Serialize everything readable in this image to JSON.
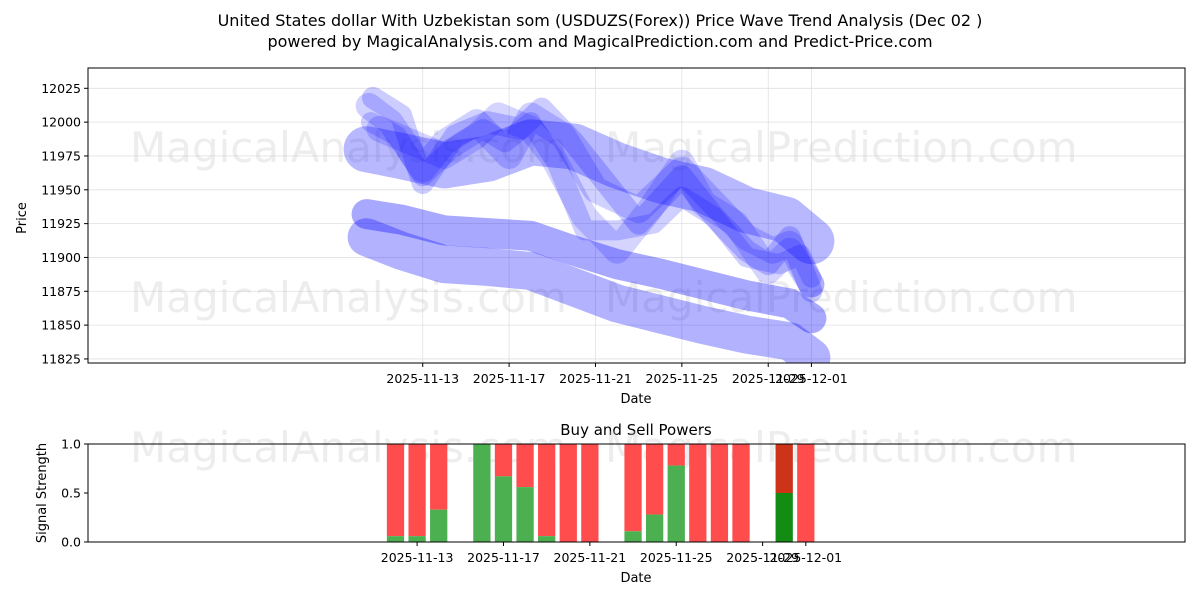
{
  "title_line1": "United States dollar With Uzbekistan som (USDUZS(Forex)) Price Wave Trend Analysis (Dec 02 )",
  "title_line2": "powered by MagicalAnalysis.com and MagicalPrediction.com and Predict-Price.com",
  "watermarks": [
    "MagicalAnalysis.com",
    "MagicalPrediction.com"
  ],
  "colors": {
    "wave": "#0000ff",
    "buy": "#4caf50",
    "sell": "#ff4d4d",
    "buy_dark": "#138c13",
    "sell_dark": "#cc3319"
  },
  "chart_data": [
    {
      "type": "line",
      "title": "",
      "xlabel": "Date",
      "ylabel": "Price",
      "ylim": [
        11822,
        12040
      ],
      "xlim": [
        -15.5,
        35.3
      ],
      "x_day_origin": "2025-11-13",
      "yticks": [
        11825,
        11850,
        11875,
        11900,
        11925,
        11950,
        11975,
        12000,
        12025
      ],
      "xticks": [
        {
          "day": 0,
          "label": "2025-11-13"
        },
        {
          "day": 4,
          "label": "2025-11-17"
        },
        {
          "day": 8,
          "label": "2025-11-21"
        },
        {
          "day": 12,
          "label": "2025-11-25"
        },
        {
          "day": 16,
          "label": "2025-11-29"
        },
        {
          "day": 18,
          "label": "2025-12-01"
        }
      ],
      "series": [
        {
          "name": "wave-1",
          "x": [
            -2.6,
            -1.0,
            1.0,
            3.0,
            5.0,
            7.0,
            9.0,
            11.0,
            13.0,
            15.0,
            17.0,
            18.0
          ],
          "y": [
            11915,
            11905,
            11895,
            11893,
            11890,
            11878,
            11866,
            11858,
            11850,
            11843,
            11838,
            11826
          ]
        },
        {
          "name": "wave-2",
          "x": [
            -2.6,
            -1.0,
            1.0,
            3.0,
            5.0,
            7.0,
            9.0,
            11.0,
            13.0,
            15.0,
            17.0,
            18.0
          ],
          "y": [
            11932,
            11928,
            11920,
            11918,
            11916,
            11905,
            11895,
            11888,
            11880,
            11872,
            11866,
            11855
          ]
        },
        {
          "name": "wave-3",
          "x": [
            -2.6,
            -1.0,
            1.0,
            3.0,
            5.0,
            7.0,
            9.0,
            11.0,
            13.0,
            15.0,
            16.8,
            18.0
          ],
          "y": [
            11980,
            11975,
            11968,
            11973,
            11985,
            11982,
            11968,
            11957,
            11950,
            11935,
            11928,
            11912
          ]
        },
        {
          "name": "wave-4",
          "x": [
            -2.5,
            -1.5,
            0.0,
            1.0,
            2.5,
            4.0,
            5.0,
            6.5,
            8.0,
            10.0,
            12.0,
            13.5,
            15.0,
            16.2,
            17.0,
            18.0
          ],
          "y": [
            12012,
            12000,
            11965,
            11985,
            12000,
            11975,
            12005,
            11990,
            11950,
            11935,
            11965,
            11940,
            11915,
            11905,
            11910,
            11880
          ]
        },
        {
          "name": "wave-5",
          "x": [
            -2.3,
            -1.0,
            0.0,
            1.5,
            3.0,
            4.5,
            5.5,
            7.0,
            8.5,
            10.0,
            12.0,
            13.5,
            15.0,
            16.0,
            17.0,
            18.0
          ],
          "y": [
            12018,
            12005,
            11955,
            11990,
            12000,
            11995,
            12010,
            11985,
            11955,
            11925,
            11960,
            11930,
            11905,
            11895,
            11915,
            11875
          ]
        },
        {
          "name": "wave-6",
          "x": [
            -2.0,
            -0.5,
            1.0,
            2.5,
            3.5,
            5.0,
            6.0,
            7.5,
            9.0,
            10.5,
            12.0,
            13.0,
            14.5,
            16.0,
            17.0,
            18.0
          ],
          "y": [
            11995,
            11985,
            11975,
            11990,
            12005,
            11995,
            11975,
            11930,
            11905,
            11935,
            11970,
            11940,
            11925,
            11890,
            11905,
            11880
          ]
        },
        {
          "name": "wave-7",
          "x": [
            -2.4,
            -1.2,
            0.0,
            1.3,
            2.8,
            3.8,
            5.0,
            6.2,
            7.5,
            9.0,
            10.7,
            12.0,
            13.5,
            15.0,
            16.5,
            17.5,
            18.0
          ],
          "y": [
            12000,
            11990,
            11960,
            11980,
            11995,
            11985,
            12000,
            11970,
            11920,
            11920,
            11925,
            11945,
            11930,
            11900,
            11895,
            11902,
            11885
          ]
        }
      ]
    },
    {
      "type": "bar",
      "title": "Buy and Sell Powers",
      "xlabel": "Date",
      "ylabel": "Signal Strength",
      "ylim": [
        0,
        1.0
      ],
      "yticks": [
        0.0,
        0.5,
        1.0
      ],
      "xticks": [
        {
          "day": 0,
          "label": "2025-11-13"
        },
        {
          "day": 4,
          "label": "2025-11-17"
        },
        {
          "day": 8,
          "label": "2025-11-21"
        },
        {
          "day": 12,
          "label": "2025-11-25"
        },
        {
          "day": 16,
          "label": "2025-11-29"
        },
        {
          "day": 18,
          "label": "2025-12-01"
        }
      ],
      "bars": [
        {
          "day": -1,
          "buy": 0.06
        },
        {
          "day": 0,
          "buy": 0.06
        },
        {
          "day": 1,
          "buy": 0.33
        },
        {
          "day": 3,
          "buy": 1.0
        },
        {
          "day": 4,
          "buy": 0.67
        },
        {
          "day": 5,
          "buy": 0.56
        },
        {
          "day": 6,
          "buy": 0.06
        },
        {
          "day": 7,
          "buy": 0.0
        },
        {
          "day": 8,
          "buy": 0.0
        },
        {
          "day": 10,
          "buy": 0.11
        },
        {
          "day": 11,
          "buy": 0.28
        },
        {
          "day": 12,
          "buy": 0.78
        },
        {
          "day": 13,
          "buy": 0.0
        },
        {
          "day": 14,
          "buy": 0.0
        },
        {
          "day": 15,
          "buy": 0.0
        },
        {
          "day": 17,
          "buy": 0.5,
          "dark": true
        },
        {
          "day": 18,
          "buy": 0.0
        }
      ]
    }
  ]
}
